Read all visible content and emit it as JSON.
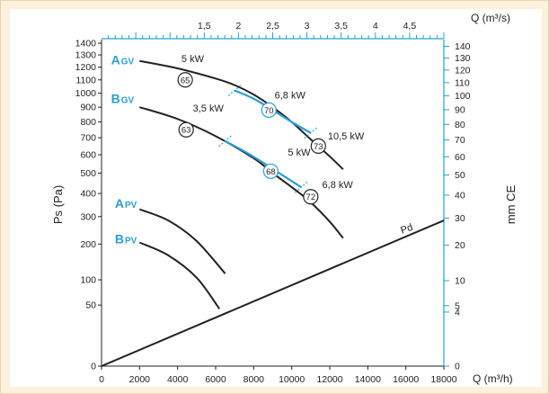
{
  "chart_data": {
    "type": "line",
    "x_axis": {
      "unit_label": "Q (m³/h)",
      "ticks": [
        0,
        2000,
        4000,
        6000,
        8000,
        10000,
        12000,
        14000,
        16000,
        18000
      ],
      "range": [
        0,
        18000
      ]
    },
    "x_top_axis": {
      "unit_label": "Q (m³/s)",
      "ticks": [
        "1,5",
        "2",
        "2,5",
        "3",
        "3,5",
        "4",
        "4,5"
      ],
      "tick_values": [
        1.5,
        2,
        2.5,
        3,
        3.5,
        4,
        4.5
      ]
    },
    "y_axis": {
      "label": "Ps (Pa)",
      "ticks": [
        0,
        50,
        100,
        200,
        300,
        400,
        500,
        600,
        700,
        800,
        900,
        1000,
        1100,
        1200,
        1300,
        1400
      ],
      "scale": "sqrt"
    },
    "y_right_axis": {
      "label": "mm CE",
      "ticks": [
        0,
        4,
        5,
        10,
        20,
        30,
        40,
        50,
        60,
        70,
        80,
        90,
        100,
        110,
        120,
        130,
        140
      ]
    },
    "series": [
      {
        "name": "A GV",
        "color": "#222222",
        "x": [
          2000,
          4000,
          6000,
          7000,
          8000,
          9000,
          10000,
          11000,
          12000,
          12700
        ],
        "y": [
          1250,
          1190,
          1110,
          1060,
          990,
          900,
          800,
          690,
          590,
          520
        ]
      },
      {
        "name": "B GV",
        "color": "#222222",
        "x": [
          2000,
          4000,
          6000,
          8000,
          9000,
          10000,
          11000,
          12000,
          12700
        ],
        "y": [
          900,
          820,
          710,
          580,
          500,
          430,
          360,
          280,
          220
        ]
      },
      {
        "name": "A PV",
        "color": "#222222",
        "x": [
          2000,
          3500,
          5000,
          6500
        ],
        "y": [
          330,
          285,
          210,
          115
        ]
      },
      {
        "name": "B PV",
        "color": "#222222",
        "x": [
          2000,
          3500,
          5000,
          6200
        ],
        "y": [
          205,
          165,
          105,
          44
        ]
      },
      {
        "name": "Pd",
        "color": "#222222",
        "x": [
          0,
          18000
        ],
        "y": [
          0,
          285
        ]
      },
      {
        "name": "GV upper blue",
        "color": "#2a9fd6",
        "x": [
          7000,
          8000,
          9000,
          10000,
          11000
        ],
        "y": [
          1020,
          960,
          880,
          800,
          730
        ]
      },
      {
        "name": "GV lower blue",
        "color": "#2a9fd6",
        "x": [
          6500,
          7500,
          8500,
          9500,
          10500
        ],
        "y": [
          680,
          620,
          555,
          490,
          430
        ]
      }
    ],
    "curve_labels": [
      {
        "text": "A",
        "sub": "GV",
        "x": 500,
        "y": 1260
      },
      {
        "text": "B",
        "sub": "GV",
        "x": 500,
        "y": 960
      },
      {
        "text": "A",
        "sub": "PV",
        "x": 700,
        "y": 355
      },
      {
        "text": "B",
        "sub": "PV",
        "x": 700,
        "y": 218
      }
    ],
    "power_labels": [
      {
        "text": "5 kW",
        "x": 4200,
        "y": 1240
      },
      {
        "text": "6,8 kW",
        "x": 9100,
        "y": 960
      },
      {
        "text": "3,5 kW",
        "x": 4800,
        "y": 870
      },
      {
        "text": "10,5 kW",
        "x": 11900,
        "y": 690
      },
      {
        "text": "5 kW",
        "x": 9800,
        "y": 595
      },
      {
        "text": "6,8 kW",
        "x": 11600,
        "y": 425
      },
      {
        "text": "Pd",
        "x": 15800,
        "y": 235
      }
    ],
    "noise_circles": [
      {
        "value": "65",
        "x": 4400,
        "y": 1100,
        "color": "#222222"
      },
      {
        "value": "70",
        "x": 8800,
        "y": 880,
        "color": "#2a9fd6"
      },
      {
        "value": "63",
        "x": 4450,
        "y": 750,
        "color": "#222222"
      },
      {
        "value": "73",
        "x": 11400,
        "y": 650,
        "color": "#222222"
      },
      {
        "value": "68",
        "x": 8900,
        "y": 510,
        "color": "#2a9fd6"
      },
      {
        "value": "72",
        "x": 11000,
        "y": 385,
        "color": "#222222"
      }
    ],
    "grid": false
  }
}
